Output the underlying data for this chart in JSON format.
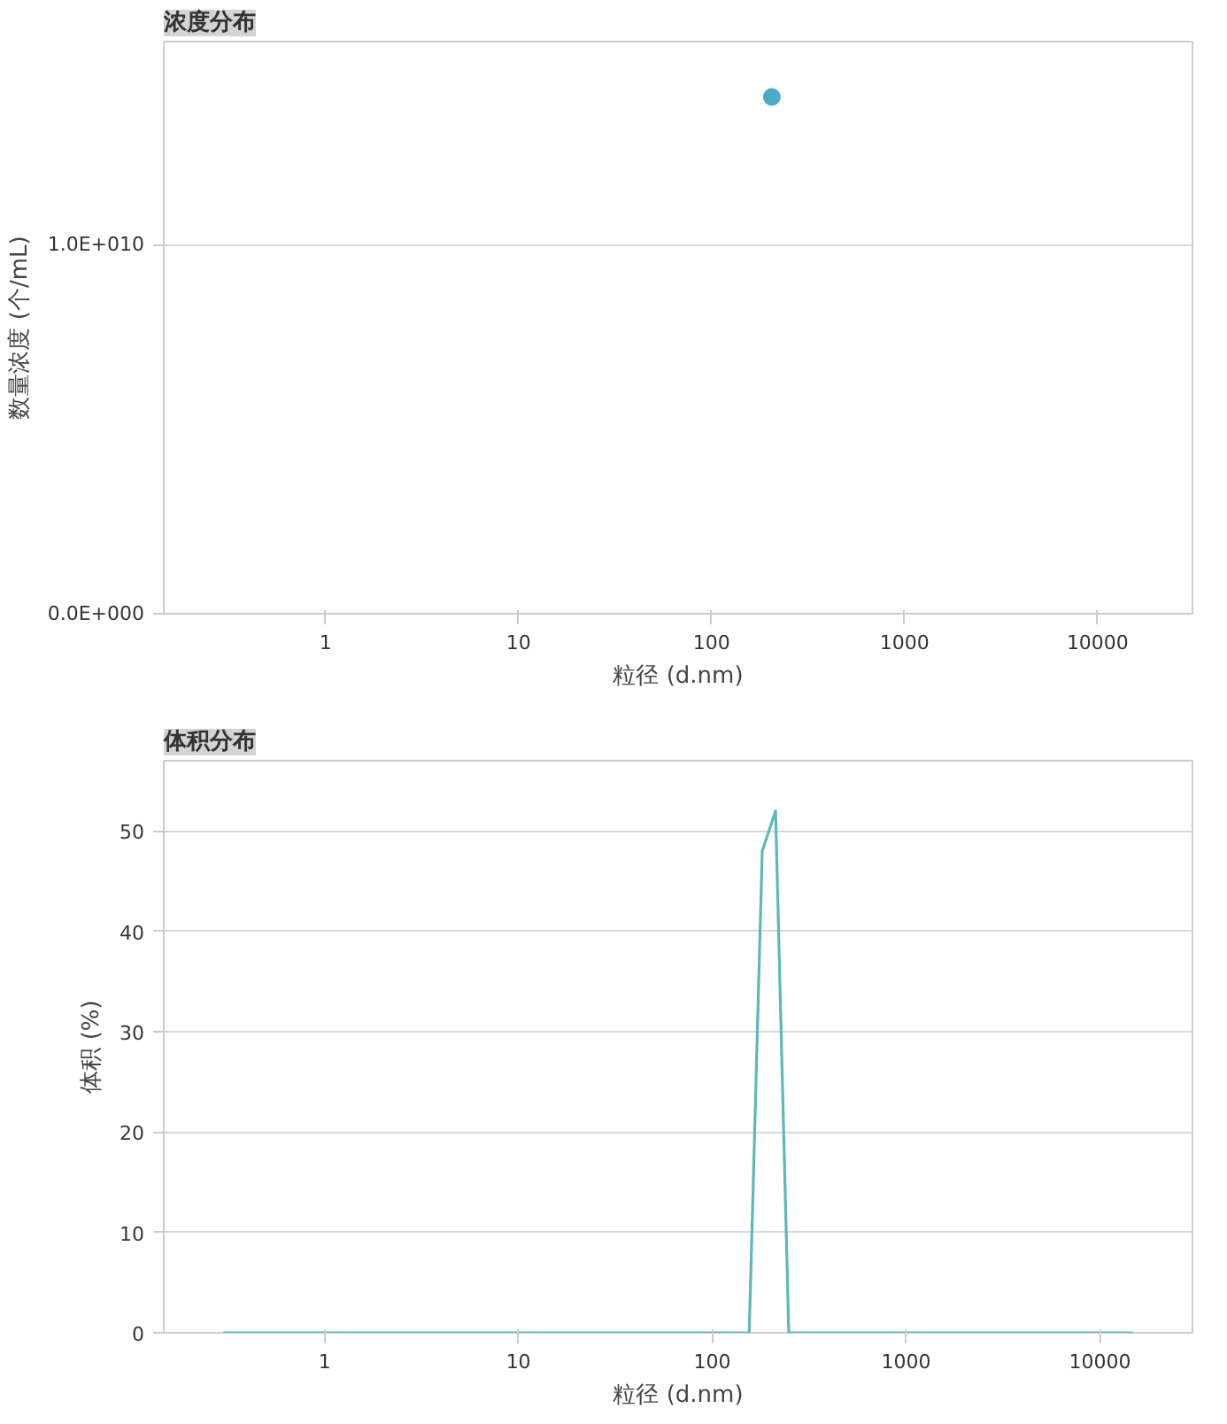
{
  "chart_data": [
    {
      "type": "scatter",
      "title": "浓度分布",
      "xlabel": "粒径 (d.nm)",
      "ylabel": "数量浓度 (个/mL)",
      "log": "x",
      "grid": "y",
      "marker": "circle",
      "x": [
        205
      ],
      "values": [
        14000000000.0
      ],
      "color": "#4bacc6",
      "xlim": [
        0.145,
        31000
      ],
      "xticks": [
        1,
        10,
        100,
        1000,
        10000
      ],
      "ylim": [
        0,
        15500000000.0
      ],
      "yticks": [
        {
          "value": 0,
          "label": "0.0E+000"
        },
        {
          "value": 10000000000.0,
          "label": "1.0E+010"
        }
      ]
    },
    {
      "type": "line",
      "title": "体积分布",
      "xlabel": "粒径 (d.nm)",
      "ylabel": "体积 (%)",
      "log": "x",
      "grid": "y",
      "marker": "none",
      "line_style": "solid",
      "x": [
        0.3,
        1,
        10,
        100,
        155,
        181,
        212,
        248,
        1000,
        10000,
        14800
      ],
      "values": [
        0,
        0,
        0,
        0,
        0,
        48,
        52,
        0,
        0,
        0,
        0
      ],
      "color": "#5fb8b8",
      "xlim": [
        0.148,
        30000
      ],
      "xticks": [
        1,
        10,
        100,
        1000,
        10000
      ],
      "ylim": [
        0,
        57
      ],
      "yticks": [
        0,
        10,
        20,
        30,
        40,
        50
      ]
    }
  ]
}
